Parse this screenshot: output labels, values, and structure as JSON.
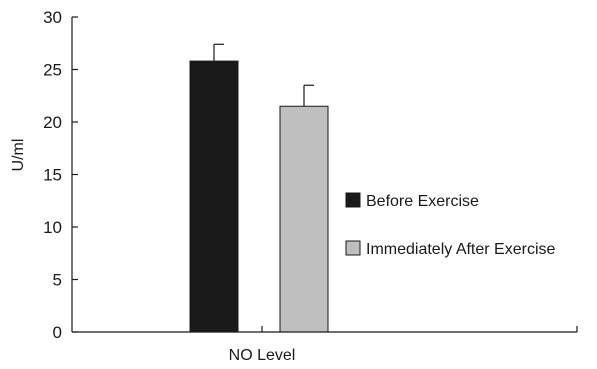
{
  "chart_data": {
    "type": "bar",
    "categories": [
      "NO Level"
    ],
    "xlabel": "NO Level",
    "ylabel": "U/ml",
    "ylim": [
      0,
      30
    ],
    "yticks": [
      0,
      5,
      10,
      15,
      20,
      25,
      30
    ],
    "grid": false,
    "legend_position": "right",
    "series": [
      {
        "name": "Before Exercise",
        "values": [
          25.8
        ],
        "error": [
          1.6
        ],
        "color": "#1a1a1a"
      },
      {
        "name": "Immediately After Exercise",
        "values": [
          21.5
        ],
        "error": [
          2.0
        ],
        "color": "#bfbfbf"
      }
    ]
  }
}
